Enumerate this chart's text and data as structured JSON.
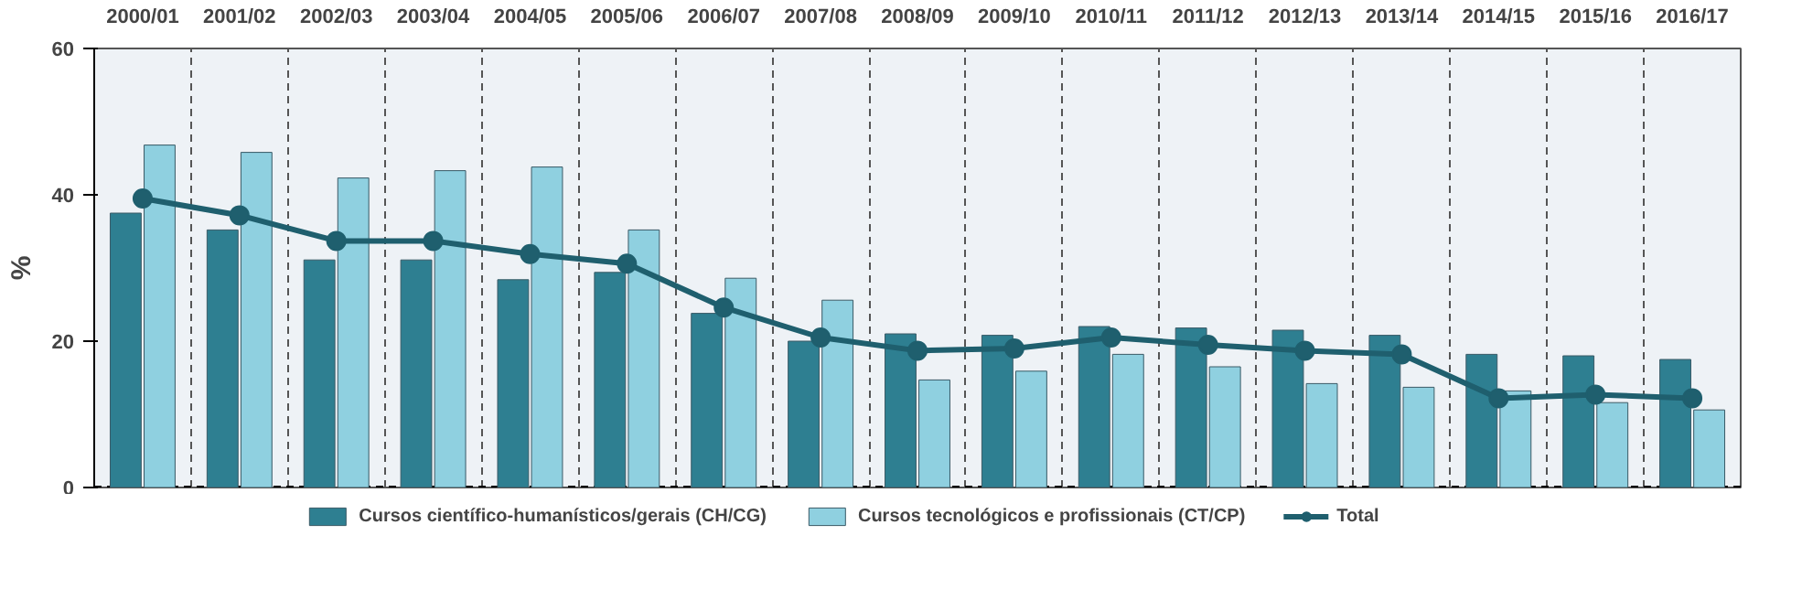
{
  "chart_data": {
    "type": "bar",
    "ylabel": "%",
    "categories": [
      "2000/01",
      "2001/02",
      "2002/03",
      "2003/04",
      "2004/05",
      "2005/06",
      "2006/07",
      "2007/08",
      "2008/09",
      "2009/10",
      "2010/11",
      "2011/12",
      "2012/13",
      "2013/14",
      "2014/15",
      "2015/16",
      "2016/17"
    ],
    "series": [
      {
        "name": "Cursos científico-humanísticos/gerais (CH/CG)",
        "color": "#2e7f91",
        "values": [
          37.5,
          35.2,
          31.1,
          31.1,
          28.4,
          29.4,
          23.8,
          20.0,
          21.0,
          20.8,
          22.0,
          21.8,
          21.5,
          20.8,
          18.2,
          18.0,
          17.5
        ]
      },
      {
        "name": "Cursos tecnológicos e profissionais (CT/CP)",
        "color": "#8fd0e0",
        "values": [
          46.8,
          45.8,
          42.3,
          43.3,
          43.8,
          35.2,
          28.6,
          25.6,
          14.7,
          15.9,
          18.2,
          16.5,
          14.2,
          13.7,
          13.2,
          11.6,
          10.6
        ]
      },
      {
        "name": "Total",
        "type": "line",
        "color": "#1f5f6e",
        "marker": "circle",
        "values": [
          39.5,
          37.2,
          33.7,
          33.7,
          31.9,
          30.6,
          24.6,
          20.5,
          18.7,
          19.0,
          20.5,
          19.5,
          18.7,
          18.2,
          12.2,
          12.7,
          12.2
        ]
      }
    ],
    "ylim": [
      0,
      60
    ],
    "yticks": [
      0,
      20,
      40,
      60
    ],
    "grid": "x",
    "legend": "bottom"
  }
}
